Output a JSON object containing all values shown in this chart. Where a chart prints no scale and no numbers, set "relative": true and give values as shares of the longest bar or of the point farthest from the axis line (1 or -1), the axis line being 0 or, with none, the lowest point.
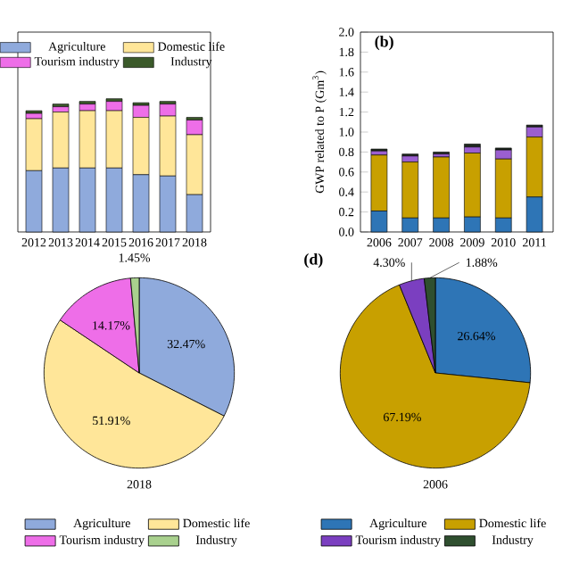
{
  "chart_data": [
    {
      "type": "bar",
      "stacked": true,
      "relative": true,
      "legend": "top",
      "categories": [
        "2012",
        "2013",
        "2014",
        "2015",
        "2016",
        "2017",
        "2018"
      ],
      "series": [
        {
          "name": "Agriculture",
          "color": "#8faadc",
          "values": [
            0.46,
            0.48,
            0.48,
            0.48,
            0.43,
            0.42,
            0.28
          ]
        },
        {
          "name": "Domestic life",
          "color": "#ffe699",
          "values": [
            0.39,
            0.42,
            0.43,
            0.43,
            0.43,
            0.45,
            0.45
          ]
        },
        {
          "name": "Tourism industry",
          "color": "#ee6ee8",
          "values": [
            0.04,
            0.04,
            0.05,
            0.07,
            0.09,
            0.09,
            0.11
          ]
        },
        {
          "name": "Industry",
          "color": "#3b5a2a",
          "values": [
            0.02,
            0.02,
            0.02,
            0.02,
            0.02,
            0.02,
            0.02
          ]
        }
      ]
    },
    {
      "type": "bar",
      "stacked": true,
      "title": "(b)",
      "ylabel": "GWP related to P (Gm$^{3}$)",
      "legend": false,
      "categories": [
        "2006",
        "2007",
        "2008",
        "2009",
        "2010",
        "2011"
      ],
      "ylim": [
        0,
        2
      ],
      "yticks": [
        {
          "value": 0,
          "label": "0.0"
        },
        0.2,
        0.4,
        0.6,
        0.8,
        {
          "value": 1,
          "label": "1.0"
        },
        1.2,
        1.4,
        1.6,
        1.8,
        {
          "value": 2,
          "label": "2.0"
        }
      ],
      "series": [
        {
          "color": "#2e75b6",
          "values": [
            0.21,
            0.14,
            0.14,
            0.15,
            0.14,
            0.35
          ]
        },
        {
          "color": "#c8a000",
          "values": [
            0.56,
            0.56,
            0.61,
            0.64,
            0.59,
            0.6
          ]
        },
        {
          "color": "#9b5fd0",
          "values": [
            0.04,
            0.06,
            0.03,
            0.06,
            0.09,
            0.1
          ]
        },
        {
          "color": "#1f2a1f",
          "values": [
            0.02,
            0.02,
            0.02,
            0.03,
            0.02,
            0.02
          ]
        }
      ]
    },
    {
      "type": "pie",
      "xlabel": "2018",
      "legend": "bottom",
      "categories": [
        "Agriculture",
        "Domestic life",
        "Tourism industry",
        "Industry"
      ],
      "values": [
        32.47,
        51.91,
        14.17,
        1.45
      ],
      "value_labels": [
        "32.47%",
        "51.91%",
        "14.17%",
        "1.45%"
      ],
      "colors": [
        "#8faadc",
        "#ffe699",
        "#ee6ee8",
        "#a9d18e"
      ]
    },
    {
      "type": "pie",
      "title": "(d)",
      "xlabel": "2006",
      "legend": "bottom",
      "categories": [
        "Agriculture",
        "Domestic life",
        "Tourism industry",
        "Industry"
      ],
      "values": [
        26.64,
        67.19,
        4.3,
        1.88
      ],
      "value_labels": [
        "26.64%",
        "67.19%",
        "4.30%",
        "1.88%"
      ],
      "colors": [
        "#2e75b6",
        "#c8a000",
        "#7b3fc0",
        "#2f4f2f"
      ]
    }
  ]
}
